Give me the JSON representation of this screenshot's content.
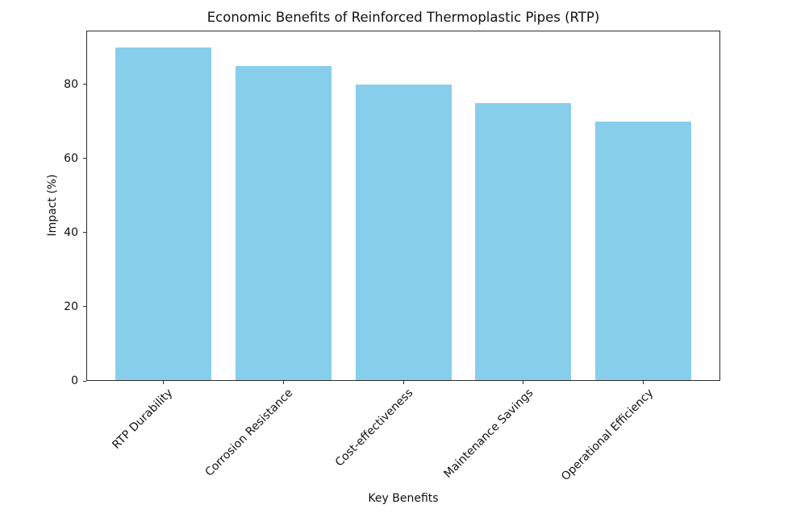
{
  "chart_data": {
    "type": "bar",
    "title": "Economic Benefits of Reinforced Thermoplastic Pipes (RTP)",
    "xlabel": "Key Benefits",
    "ylabel": "Impact (%)",
    "categories": [
      "RTP Durability",
      "Corrosion Resistance",
      "Cost-effectiveness",
      "Maintenance Savings",
      "Operational Efficiency"
    ],
    "values": [
      90,
      85,
      80,
      75,
      70
    ],
    "yticks": [
      0,
      20,
      40,
      60,
      80
    ],
    "ylim": [
      0,
      94.5
    ],
    "xlim": [
      -0.64,
      4.64
    ],
    "bar_width": 0.8,
    "bar_color": "#87CEEB",
    "spine_color": "#2b2b2b",
    "grid": false,
    "legend_position": "none"
  }
}
